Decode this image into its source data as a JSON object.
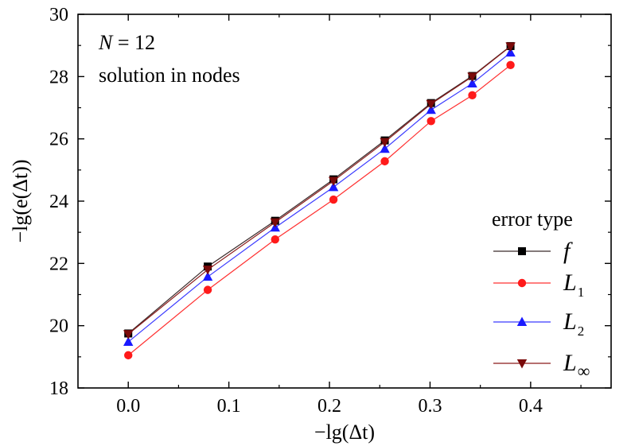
{
  "chart_data": {
    "type": "line",
    "xlabel": "−lg(Δt)",
    "ylabel": "−lg(e(Δt))",
    "xlim": [
      -0.05,
      0.48
    ],
    "ylim": [
      18,
      30
    ],
    "xticks": [
      "0.0",
      "0.1",
      "0.2",
      "0.3",
      "0.4"
    ],
    "xtick_values": [
      0.0,
      0.1,
      0.2,
      0.3,
      0.4
    ],
    "yticks": [
      "18",
      "20",
      "22",
      "24",
      "26",
      "28",
      "30"
    ],
    "ytick_values": [
      18,
      20,
      22,
      24,
      26,
      28,
      30
    ],
    "annotation": {
      "line1_var": "N",
      "line1_rest": " = 12",
      "line2": "solution in nodes"
    },
    "legend": {
      "title": "error type",
      "placement": "bottom-right"
    },
    "x": [
      0.0,
      0.079,
      0.146,
      0.204,
      0.255,
      0.301,
      0.342,
      0.38
    ],
    "series": [
      {
        "name": "f",
        "name_base": "f",
        "name_sub": "",
        "marker": "square",
        "color": "#000000",
        "line_color": "#3a2a2a",
        "values": [
          19.75,
          21.9,
          23.37,
          24.7,
          25.95,
          27.15,
          28.02,
          28.98
        ]
      },
      {
        "name": "L1",
        "name_base": "L",
        "name_sub": "1",
        "marker": "circle",
        "color": "#ff1a1a",
        "line_color": "#ff3030",
        "values": [
          19.05,
          21.15,
          22.77,
          24.05,
          25.28,
          26.57,
          27.4,
          28.37
        ]
      },
      {
        "name": "L2",
        "name_base": "L",
        "name_sub": "2",
        "marker": "triangle-up",
        "color": "#1a1aff",
        "line_color": "#3a3aff",
        "values": [
          19.48,
          21.57,
          23.15,
          24.45,
          25.68,
          26.93,
          27.78,
          28.77
        ]
      },
      {
        "name": "L∞",
        "name_base": "L",
        "name_sub": "∞",
        "marker": "triangle-down",
        "color": "#7a0a0a",
        "line_color": "#8a1a1a",
        "values": [
          19.73,
          21.8,
          23.32,
          24.65,
          25.9,
          27.12,
          28.0,
          28.97
        ]
      }
    ]
  }
}
